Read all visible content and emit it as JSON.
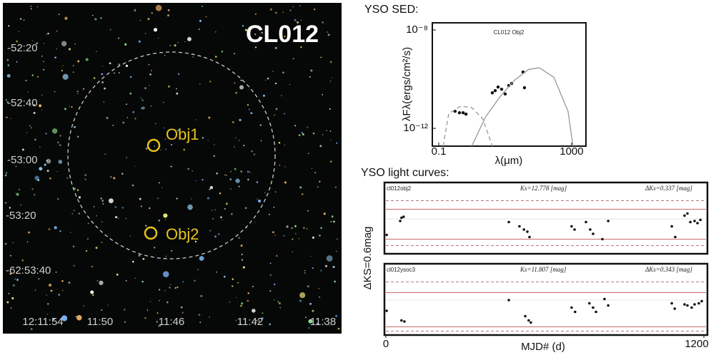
{
  "image_panel": {
    "title": "CL012",
    "objects": [
      {
        "label": "Obj1"
      },
      {
        "label": "Obj2"
      }
    ],
    "y_labels": [
      "-52:20",
      "-52:40",
      "-53:00",
      "-53:20",
      "-62:53:40"
    ],
    "x_labels": [
      "12:11:54",
      "11:50",
      "11:46",
      "11:42",
      "11:38"
    ]
  },
  "chart_data": [
    {
      "type": "sed",
      "title": "YSO SED:",
      "annotation": "CL012  Obj2",
      "ylabel": "λFλ(ergs/cm²/s)",
      "xlabel": "λ(μm)",
      "xscale": "log",
      "yscale": "log",
      "xlim": [
        0.064,
        2700
      ],
      "ylim": [
        1.9e-13,
        1.95e-08
      ],
      "xticks": [
        0.1,
        1000
      ],
      "yticks": [
        {
          "value": 1e-08,
          "label": "10⁻⁸"
        },
        {
          "value": 1e-12,
          "label": "10⁻¹²"
        }
      ],
      "series": [
        {
          "style": "points",
          "color": "#111111",
          "x": [
            0.31,
            0.42,
            0.54,
            0.66,
            4.1,
            5.0,
            6.1,
            7.8,
            10,
            12.8,
            15.6,
            34.5,
            38
          ],
          "values": [
            4.96e-12,
            4.3e-12,
            4.3e-12,
            3.8e-12,
            2.8e-11,
            3.4e-11,
            4.8e-11,
            3.9e-11,
            2.5e-11,
            5.5e-11,
            6.7e-11,
            1.95e-10,
            4.5e-11
          ]
        },
        {
          "style": "line",
          "color": "#999999",
          "x": [
            0.98,
            2.6,
            7.1,
            19,
            51,
            107,
            290,
            780,
            1100
          ],
          "values": [
            1.9e-13,
            3e-12,
            2e-11,
            9e-11,
            2.5e-10,
            2.9e-10,
            1.2e-10,
            5e-12,
            1.9e-13
          ]
        },
        {
          "style": "dashed",
          "color": "#999999",
          "x": [
            0.135,
            0.2,
            0.46,
            0.98,
            2.1,
            4.1
          ],
          "values": [
            1.9e-13,
            4e-12,
            8e-12,
            7e-12,
            2.5e-12,
            1.9e-13
          ]
        }
      ]
    },
    {
      "type": "lightcurve",
      "title": "YSO light curves:",
      "ylabel": "ΔKS=0.6mag",
      "name_label": "cl012obj2",
      "mag_label": "Ks=12.778 [mag]",
      "amp_label": "ΔKs=0.337 [mag]",
      "xlim": [
        0,
        1200
      ],
      "ylim": [
        0.3,
        -0.3
      ],
      "solid_lines": [
        -0.09,
        0.19
      ],
      "dashed_lines": [
        -0.17,
        0.25
      ],
      "x": [
        3,
        54,
        59,
        67,
        464,
        504,
        521,
        534,
        542,
        701,
        712,
        755,
        771,
        782,
        817,
        839,
        1079,
        1092,
        1127,
        1138,
        1149,
        1165,
        1176,
        1187
      ],
      "values": [
        0.15,
        0.02,
        -0.01,
        -0.02,
        0.03,
        0.07,
        0.1,
        0.12,
        0.17,
        0.07,
        0.1,
        0.03,
        0.1,
        0.14,
        0.19,
        0.02,
        0.07,
        0.17,
        -0.03,
        -0.05,
        0.03,
        0.02,
        0.04,
        0.01
      ]
    },
    {
      "type": "lightcurve",
      "xlabel": "MJD# (d)",
      "name_label": "cl012ysoc3",
      "mag_label": "Ks=11.807 [mag]",
      "amp_label": "ΔKs=0.343 [mag]",
      "xlim": [
        0,
        1200
      ],
      "ylim": [
        0.3,
        -0.3
      ],
      "xticks": [
        0,
        1200
      ],
      "solid_lines": [
        -0.07,
        0.25
      ],
      "dashed_lines": [
        -0.17,
        0.29
      ],
      "x": [
        3,
        59,
        70,
        464,
        526,
        539,
        547,
        701,
        714,
        768,
        782,
        793,
        825,
        839,
        1079,
        1090,
        1127,
        1138,
        1154,
        1165,
        1181,
        1192
      ],
      "values": [
        0.1,
        0.19,
        0.2,
        0.0,
        0.15,
        0.19,
        0.21,
        0.07,
        0.11,
        0.03,
        0.07,
        0.11,
        -0.01,
        0.05,
        0.03,
        0.08,
        0.04,
        0.05,
        0.07,
        0.04,
        0.03,
        0.01
      ]
    }
  ]
}
